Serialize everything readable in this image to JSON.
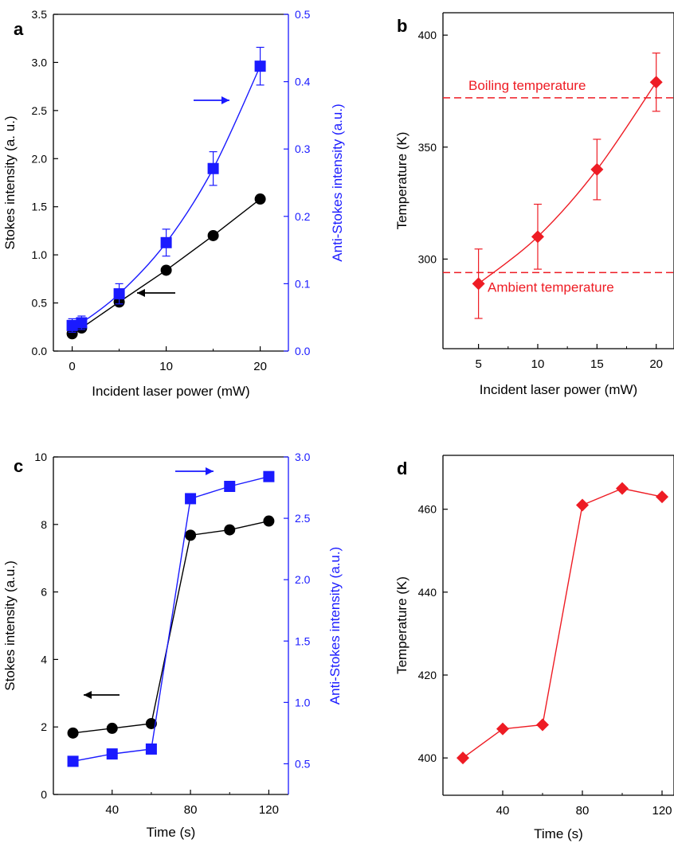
{
  "chart_data": [
    {
      "panel": "a",
      "type": "line",
      "xlabel": "Incident laser power (mW)",
      "ylabel": "Stokes intensity (a. u.)",
      "y2label": "Anti-Stokes intensity (a.u.)",
      "xticks": [
        0,
        10,
        20
      ],
      "yticks": [
        "0.0",
        "0.5",
        "1.0",
        "1.5",
        "2.0",
        "2.5",
        "3.0",
        "3.5"
      ],
      "y2ticks": [
        "0.0",
        "0.1",
        "0.2",
        "0.3",
        "0.4",
        "0.5"
      ],
      "xlim": [
        -2,
        23
      ],
      "ylim": [
        0,
        3.5
      ],
      "y2lim": [
        0,
        0.5
      ],
      "series": [
        {
          "axis": "left",
          "color": "#000000",
          "marker": "circle",
          "x": [
            0,
            1,
            5,
            10,
            15,
            20
          ],
          "y": [
            0.18,
            0.24,
            0.51,
            0.84,
            1.2,
            1.58
          ]
        },
        {
          "axis": "right",
          "color": "#1a1aff",
          "marker": "square",
          "x": [
            0,
            1,
            5,
            10,
            15,
            20
          ],
          "y": [
            0.038,
            0.042,
            0.085,
            0.161,
            0.271,
            0.423
          ],
          "err": [
            0.01,
            0.01,
            0.015,
            0.02,
            0.025,
            0.028
          ]
        }
      ]
    },
    {
      "panel": "b",
      "type": "line",
      "xlabel": "Incident laser power (mW)",
      "ylabel": "Temperature (K)",
      "xticks": [
        5,
        10,
        15,
        20
      ],
      "yticks": [
        300,
        350,
        400
      ],
      "xlim": [
        2,
        21.5
      ],
      "ylim": [
        260,
        410
      ],
      "series": [
        {
          "color": "#ee1c24",
          "marker": "diamond",
          "x": [
            5,
            10,
            15,
            20
          ],
          "y": [
            289,
            310,
            340,
            379
          ],
          "err": [
            15.5,
            14.5,
            13.5,
            13
          ]
        }
      ],
      "hlines": [
        {
          "y": 372,
          "label": "Boiling temperature"
        },
        {
          "y": 294,
          "label": "Ambient temperature"
        }
      ]
    },
    {
      "panel": "c",
      "type": "line",
      "xlabel": "Time (s)",
      "ylabel": "Stokes intensity (a.u.)",
      "y2label": "Anti-Stokes intensity (a.u.)",
      "xticks": [
        40,
        80,
        120
      ],
      "yticks": [
        0,
        2,
        4,
        6,
        8,
        10
      ],
      "y2ticks": [
        "0.5",
        "1.0",
        "1.5",
        "2.0",
        "2.5",
        "3.0"
      ],
      "xlim": [
        10,
        130
      ],
      "ylim": [
        0,
        10
      ],
      "y2lim": [
        0.25,
        3.0
      ],
      "series": [
        {
          "axis": "left",
          "color": "#000000",
          "marker": "circle",
          "x": [
            20,
            40,
            60,
            80,
            100,
            120
          ],
          "y": [
            1.82,
            1.96,
            2.1,
            7.68,
            7.84,
            8.1
          ]
        },
        {
          "axis": "right",
          "color": "#1a1aff",
          "marker": "square",
          "x": [
            20,
            40,
            60,
            80,
            100,
            120
          ],
          "y": [
            0.52,
            0.58,
            0.62,
            2.66,
            2.76,
            2.84
          ]
        }
      ]
    },
    {
      "panel": "d",
      "type": "line",
      "xlabel": "Time (s)",
      "ylabel": "Temperature (K)",
      "xticks": [
        40,
        80,
        120
      ],
      "yticks": [
        400,
        420,
        440,
        460
      ],
      "xlim": [
        10,
        126
      ],
      "ylim": [
        391,
        473
      ],
      "series": [
        {
          "color": "#ee1c24",
          "marker": "diamond",
          "x": [
            20,
            40,
            60,
            80,
            100,
            120
          ],
          "y": [
            400,
            407,
            408,
            461,
            465,
            463
          ]
        }
      ]
    }
  ]
}
